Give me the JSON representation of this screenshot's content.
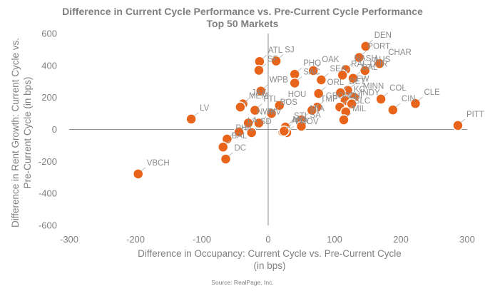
{
  "chart_data": {
    "type": "scatter",
    "title": "Difference in Current Cycle Performance vs. Pre-Current Cycle Performance",
    "subtitle": "Top 50 Markets",
    "xlabel": [
      "Difference in Occupancy: Current Cycle vs. Pre-Current Cycle",
      "(in bps)"
    ],
    "ylabel": [
      "Difference in Rent Growth: Current Cycle vs.",
      "Pre-Current Cycle (in bps)"
    ],
    "xlim": [
      -300,
      300
    ],
    "ylim": [
      -600,
      600
    ],
    "xticks": [
      -300,
      -200,
      -100,
      0,
      100,
      200,
      300
    ],
    "yticks": [
      -600,
      -400,
      -200,
      0,
      200,
      400,
      600
    ],
    "grid": false,
    "marker_color": "#E8641B",
    "source": "Source: RealPage, Inc.",
    "points": [
      {
        "label": "DEN",
        "x": 147,
        "y": 520
      },
      {
        "label": "PORT",
        "x": 137,
        "y": 450
      },
      {
        "label": "CHAR",
        "x": 168,
        "y": 412
      },
      {
        "label": "ATL",
        "x": -13,
        "y": 425
      },
      {
        "label": "SJ",
        "x": 12,
        "y": 428
      },
      {
        "label": "SF",
        "x": -14,
        "y": 370
      },
      {
        "label": "OAK",
        "x": 68,
        "y": 368
      },
      {
        "label": "NASH",
        "x": 117,
        "y": 375
      },
      {
        "label": "AUS",
        "x": 146,
        "y": 368
      },
      {
        "label": "RAL-DUR",
        "x": 112,
        "y": 340
      },
      {
        "label": "PHO",
        "x": 40,
        "y": 345
      },
      {
        "label": "DAL",
        "x": 128,
        "y": 320
      },
      {
        "label": "SEA",
        "x": 80,
        "y": 310
      },
      {
        "label": "SAC",
        "x": 40,
        "y": 290
      },
      {
        "label": "ORL",
        "x": 76,
        "y": 225
      },
      {
        "label": "FW",
        "x": 120,
        "y": 245
      },
      {
        "label": "WPB",
        "x": -11,
        "y": 240
      },
      {
        "label": "DET",
        "x": 109,
        "y": 230
      },
      {
        "label": "MINN",
        "x": 130,
        "y": 200
      },
      {
        "label": "COL",
        "x": 170,
        "y": 190
      },
      {
        "label": "CLE",
        "x": 222,
        "y": 162
      },
      {
        "label": "JAX",
        "x": -38,
        "y": 160
      },
      {
        "label": "HOU",
        "x": 17,
        "y": 150
      },
      {
        "label": "GBORO",
        "x": 74,
        "y": 140
      },
      {
        "label": "KC",
        "x": 116,
        "y": 180
      },
      {
        "label": "INDY",
        "x": 126,
        "y": 160
      },
      {
        "label": "MEM",
        "x": -42,
        "y": 140
      },
      {
        "label": "CIN",
        "x": 188,
        "y": 122
      },
      {
        "label": "PITT",
        "x": 286,
        "y": 25
      },
      {
        "label": "TMP",
        "x": 66,
        "y": 120
      },
      {
        "label": "CHI",
        "x": 108,
        "y": 140
      },
      {
        "label": "SLC",
        "x": 117,
        "y": 110
      },
      {
        "label": "FTL",
        "x": -20,
        "y": 120
      },
      {
        "label": "MIL",
        "x": 114,
        "y": 60
      },
      {
        "label": "LV",
        "x": -116,
        "y": 65
      },
      {
        "label": "NWK",
        "x": -30,
        "y": 40
      },
      {
        "label": "RIV",
        "x": -14,
        "y": 40
      },
      {
        "label": "BOS",
        "x": 5,
        "y": 100
      },
      {
        "label": "STL",
        "x": 26,
        "y": 15
      },
      {
        "label": "MIA",
        "x": 50,
        "y": 60
      },
      {
        "label": "SA",
        "x": 50,
        "y": 20
      },
      {
        "label": "PROV",
        "x": 28,
        "y": -20
      },
      {
        "label": "LA",
        "x": -44,
        "y": -15
      },
      {
        "label": "SD",
        "x": -25,
        "y": -20
      },
      {
        "label": "ANA",
        "x": 22,
        "y": -15
      },
      {
        "label": "NY",
        "x": 24,
        "y": -10
      },
      {
        "label": "PHIL",
        "x": -62,
        "y": -60
      },
      {
        "label": "BAL",
        "x": -68,
        "y": -110
      },
      {
        "label": "DC",
        "x": -64,
        "y": -185
      },
      {
        "label": "VBCH",
        "x": -196,
        "y": -278
      }
    ]
  }
}
